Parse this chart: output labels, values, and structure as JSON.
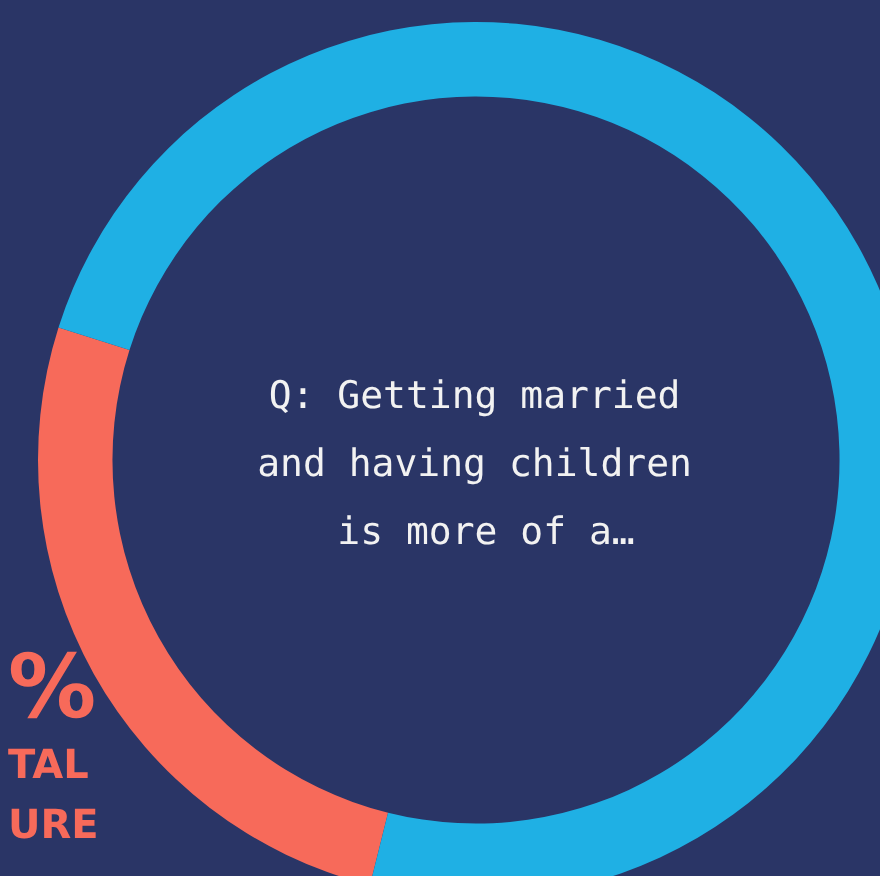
{
  "chart_data": {
    "type": "donut",
    "title": "Q: Getting married and having children is more of a…",
    "categories": [
      null,
      null
    ],
    "values": [
      26,
      74
    ],
    "colors": [
      "#f76a5a",
      "#1fb0e4"
    ],
    "annotations": [
      "%",
      "TAL",
      "URE"
    ]
  }
}
